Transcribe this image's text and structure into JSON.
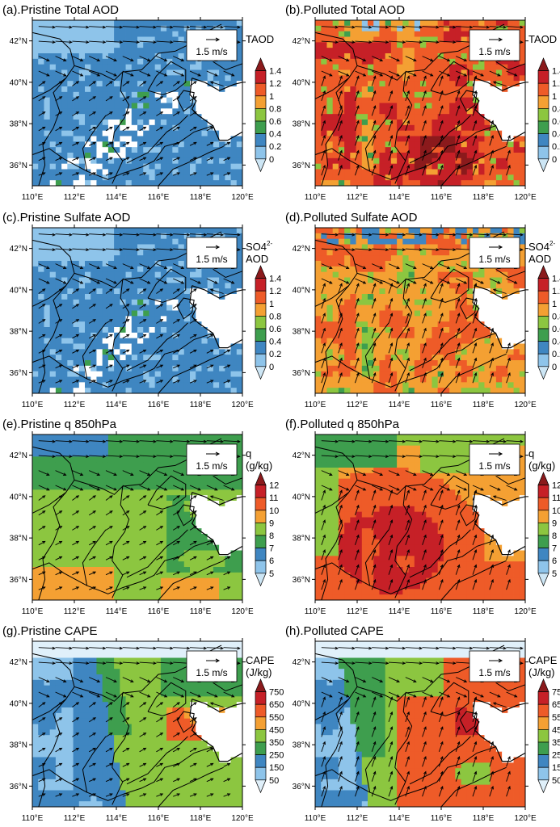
{
  "panels": [
    {
      "id": "a",
      "title": "(a).Pristine Total AOD",
      "scheme": "aod",
      "field": "pristine_aod",
      "unit_lines": [
        "TAOD"
      ],
      "unit_sup": ""
    },
    {
      "id": "b",
      "title": "(b).Polluted Total AOD",
      "scheme": "aod",
      "field": "polluted_aod",
      "unit_lines": [
        "TAOD"
      ],
      "unit_sup": ""
    },
    {
      "id": "c",
      "title": "(c).Pristine Sulfate AOD",
      "scheme": "aod",
      "field": "pristine_so4",
      "unit_lines": [
        "SO4",
        "AOD"
      ],
      "unit_sup": "2-"
    },
    {
      "id": "d",
      "title": "(d).Polluted Sulfate AOD",
      "scheme": "aod",
      "field": "polluted_so4",
      "unit_lines": [
        "SO4",
        "AOD"
      ],
      "unit_sup": "2-"
    },
    {
      "id": "e",
      "title": "(e).Pristine q 850hPa",
      "scheme": "q",
      "field": "pristine_q",
      "unit_lines": [
        "q",
        "(g/kg)"
      ],
      "unit_sup": ""
    },
    {
      "id": "f",
      "title": "(f).Polluted q 850hPa",
      "scheme": "q",
      "field": "polluted_q",
      "unit_lines": [
        "q",
        "(g/kg)"
      ],
      "unit_sup": ""
    },
    {
      "id": "g",
      "title": "(g).Pristine CAPE",
      "scheme": "cape",
      "field": "pristine_cape",
      "unit_lines": [
        "CAPE",
        "(J/kg)"
      ],
      "unit_sup": ""
    },
    {
      "id": "h",
      "title": "(h).Polluted CAPE",
      "scheme": "cape",
      "field": "polluted_cape",
      "unit_lines": [
        "CAPE",
        "(J/kg)"
      ],
      "unit_sup": ""
    }
  ],
  "axes": {
    "lon_range": [
      110,
      120
    ],
    "lat_range": [
      35,
      43
    ],
    "x_ticks": [
      "110°E",
      "112°E",
      "114°E",
      "116°E",
      "118°E",
      "120°E"
    ],
    "y_ticks": [
      "36°N",
      "38°N",
      "40°N",
      "42°N"
    ]
  },
  "reference_vector_label": "1.5 m/s",
  "colorbars": {
    "aod": {
      "levels": [
        "0",
        "0.2",
        "0.4",
        "0.6",
        "0.8",
        "1",
        "1.2",
        "1.4"
      ],
      "colors": [
        "#cde6f5",
        "#8ec4ea",
        "#3f86c1",
        "#3e9e4e",
        "#8cc640",
        "#f4a033",
        "#ee5b28",
        "#c62027",
        "#8b1a1c"
      ]
    },
    "q": {
      "levels": [
        "5",
        "6",
        "7",
        "8",
        "9",
        "10",
        "11",
        "12"
      ],
      "colors": [
        "#cde6f5",
        "#8ec4ea",
        "#3f86c1",
        "#3e9e4e",
        "#8cc640",
        "#f4a033",
        "#ee5b28",
        "#c62027",
        "#8b1a1c"
      ]
    },
    "cape": {
      "levels": [
        "50",
        "150",
        "250",
        "350",
        "450",
        "550",
        "650",
        "750"
      ],
      "colors": [
        "#e0f0fa",
        "#8ec4ea",
        "#3f86c1",
        "#3e9e4e",
        "#8cc640",
        "#f4a033",
        "#ee5b28",
        "#c62027",
        "#8b1a1c"
      ]
    }
  },
  "colors": {
    "coast": "#000000",
    "land_border": "#000000",
    "sea_mask": "#ffffff"
  }
}
